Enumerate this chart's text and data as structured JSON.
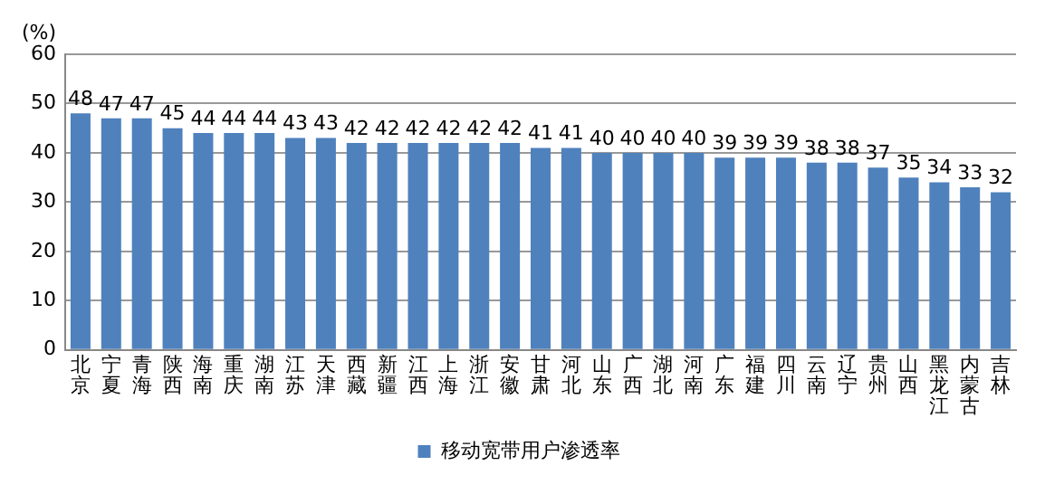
{
  "chart_data": {
    "type": "bar",
    "ylabel": "(%)",
    "categories": [
      "北京",
      "宁夏",
      "青海",
      "陕西",
      "海南",
      "重庆",
      "湖南",
      "江苏",
      "天津",
      "西藏",
      "新疆",
      "江西",
      "上海",
      "浙江",
      "安徽",
      "甘肃",
      "河北",
      "山东",
      "广西",
      "湖北",
      "河南",
      "广东",
      "福建",
      "四川",
      "云南",
      "辽宁",
      "贵州",
      "山西",
      "黑龙江",
      "内蒙古",
      "吉林"
    ],
    "series": [
      {
        "name": "移动宽带用户渗透率",
        "color": "#4f81bd",
        "values": [
          48,
          47,
          47,
          45,
          44,
          44,
          44,
          43,
          43,
          42,
          42,
          42,
          42,
          42,
          42,
          41,
          41,
          40,
          40,
          40,
          40,
          39,
          39,
          39,
          38,
          38,
          37,
          35,
          34,
          33,
          32
        ]
      }
    ],
    "ylim": [
      0,
      60
    ],
    "yticks": [
      0,
      10,
      20,
      30,
      40,
      50,
      60
    ],
    "grid": "y",
    "legend": "bottom",
    "data_labels": true
  }
}
